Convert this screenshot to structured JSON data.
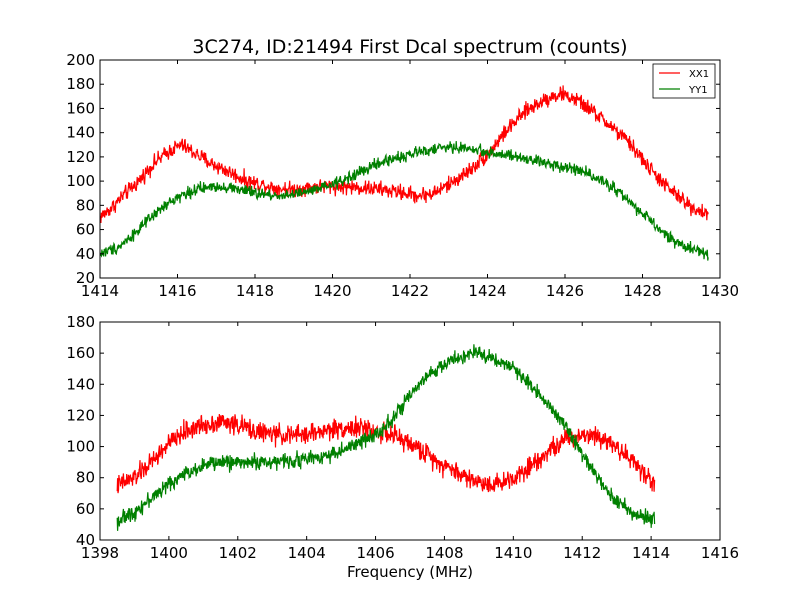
{
  "figure": {
    "title": "3C274, ID:21494 First Dcal spectrum (counts)",
    "xlabel": "Frequency (MHz)"
  },
  "chart_data": [
    {
      "type": "line",
      "title": "3C274, ID:21494 First Dcal spectrum (counts)",
      "xlabel": "",
      "ylabel": "",
      "xlim": [
        1414,
        1430
      ],
      "ylim": [
        20,
        200
      ],
      "xticks": [
        1414,
        1416,
        1418,
        1420,
        1422,
        1424,
        1426,
        1428,
        1430
      ],
      "yticks": [
        20,
        40,
        60,
        80,
        100,
        120,
        140,
        160,
        180,
        200
      ],
      "legend": {
        "position": "top-right",
        "entries": [
          "XX1",
          "YY1"
        ]
      },
      "grid": false,
      "series": [
        {
          "name": "XX1",
          "color": "#ff0000",
          "noise": 4,
          "x": [
            1414.0,
            1414.3,
            1414.6,
            1415.0,
            1415.4,
            1415.8,
            1416.1,
            1416.5,
            1416.9,
            1417.3,
            1417.8,
            1418.2,
            1418.6,
            1419.0,
            1419.5,
            1420.0,
            1420.5,
            1421.0,
            1421.5,
            1421.9,
            1422.2,
            1422.6,
            1423.0,
            1423.5,
            1424.0,
            1424.5,
            1425.0,
            1425.5,
            1425.9,
            1426.3,
            1426.7,
            1427.2,
            1427.7,
            1428.2,
            1428.7,
            1429.2,
            1429.7
          ],
          "y": [
            70,
            78,
            88,
            100,
            115,
            125,
            130,
            122,
            114,
            108,
            100,
            97,
            94,
            93,
            95,
            96,
            95,
            94,
            92,
            90,
            88,
            90,
            97,
            108,
            122,
            142,
            158,
            168,
            172,
            167,
            158,
            145,
            130,
            110,
            93,
            80,
            72
          ]
        },
        {
          "name": "YY1",
          "color": "#008000",
          "noise": 3,
          "x": [
            1414.0,
            1414.5,
            1415.0,
            1415.5,
            1416.0,
            1416.5,
            1417.0,
            1417.5,
            1418.0,
            1418.5,
            1419.0,
            1419.5,
            1420.0,
            1420.5,
            1421.0,
            1421.5,
            1422.0,
            1422.5,
            1423.0,
            1423.5,
            1424.0,
            1424.5,
            1425.0,
            1425.5,
            1426.0,
            1426.5,
            1427.0,
            1427.5,
            1428.0,
            1428.5,
            1429.0,
            1429.7
          ],
          "y": [
            40,
            46,
            60,
            75,
            87,
            93,
            96,
            94,
            90,
            88,
            89,
            92,
            97,
            104,
            112,
            118,
            122,
            126,
            128,
            127,
            124,
            121,
            118,
            115,
            112,
            108,
            100,
            88,
            73,
            58,
            47,
            40
          ]
        }
      ]
    },
    {
      "type": "line",
      "title": "",
      "xlabel": "Frequency (MHz)",
      "ylabel": "",
      "xlim": [
        1398,
        1416
      ],
      "ylim": [
        40,
        180
      ],
      "xticks": [
        1398,
        1400,
        1402,
        1404,
        1406,
        1408,
        1410,
        1412,
        1414,
        1416
      ],
      "yticks": [
        40,
        60,
        80,
        100,
        120,
        140,
        160,
        180
      ],
      "grid": false,
      "series": [
        {
          "name": "XX1",
          "color": "#ff0000",
          "noise": 4,
          "x": [
            1398.5,
            1399.0,
            1399.5,
            1400.0,
            1400.5,
            1401.0,
            1401.5,
            1402.0,
            1402.5,
            1403.0,
            1403.5,
            1404.0,
            1404.5,
            1405.0,
            1405.5,
            1406.0,
            1406.5,
            1407.0,
            1407.5,
            1408.0,
            1408.5,
            1409.0,
            1409.5,
            1410.0,
            1410.5,
            1411.0,
            1411.5,
            1412.0,
            1412.5,
            1413.0,
            1413.5,
            1414.1
          ],
          "y": [
            75,
            80,
            90,
            102,
            110,
            114,
            116,
            114,
            110,
            108,
            107,
            108,
            110,
            112,
            112,
            110,
            107,
            102,
            95,
            88,
            82,
            77,
            76,
            80,
            88,
            97,
            104,
            108,
            107,
            100,
            90,
            76
          ]
        },
        {
          "name": "YY1",
          "color": "#008000",
          "noise": 3,
          "x": [
            1398.5,
            1399.0,
            1399.5,
            1400.0,
            1400.5,
            1401.0,
            1401.5,
            1402.0,
            1402.5,
            1403.0,
            1403.5,
            1404.0,
            1404.5,
            1405.0,
            1405.5,
            1406.0,
            1406.5,
            1407.0,
            1407.5,
            1408.0,
            1408.5,
            1409.0,
            1409.5,
            1410.0,
            1410.5,
            1411.0,
            1411.5,
            1412.0,
            1412.5,
            1413.0,
            1413.5,
            1414.1
          ],
          "y": [
            52,
            58,
            67,
            76,
            83,
            88,
            90,
            90,
            90,
            90,
            91,
            92,
            94,
            97,
            102,
            108,
            118,
            132,
            145,
            153,
            158,
            160,
            156,
            150,
            140,
            128,
            114,
            95,
            78,
            65,
            57,
            53
          ]
        }
      ]
    }
  ]
}
